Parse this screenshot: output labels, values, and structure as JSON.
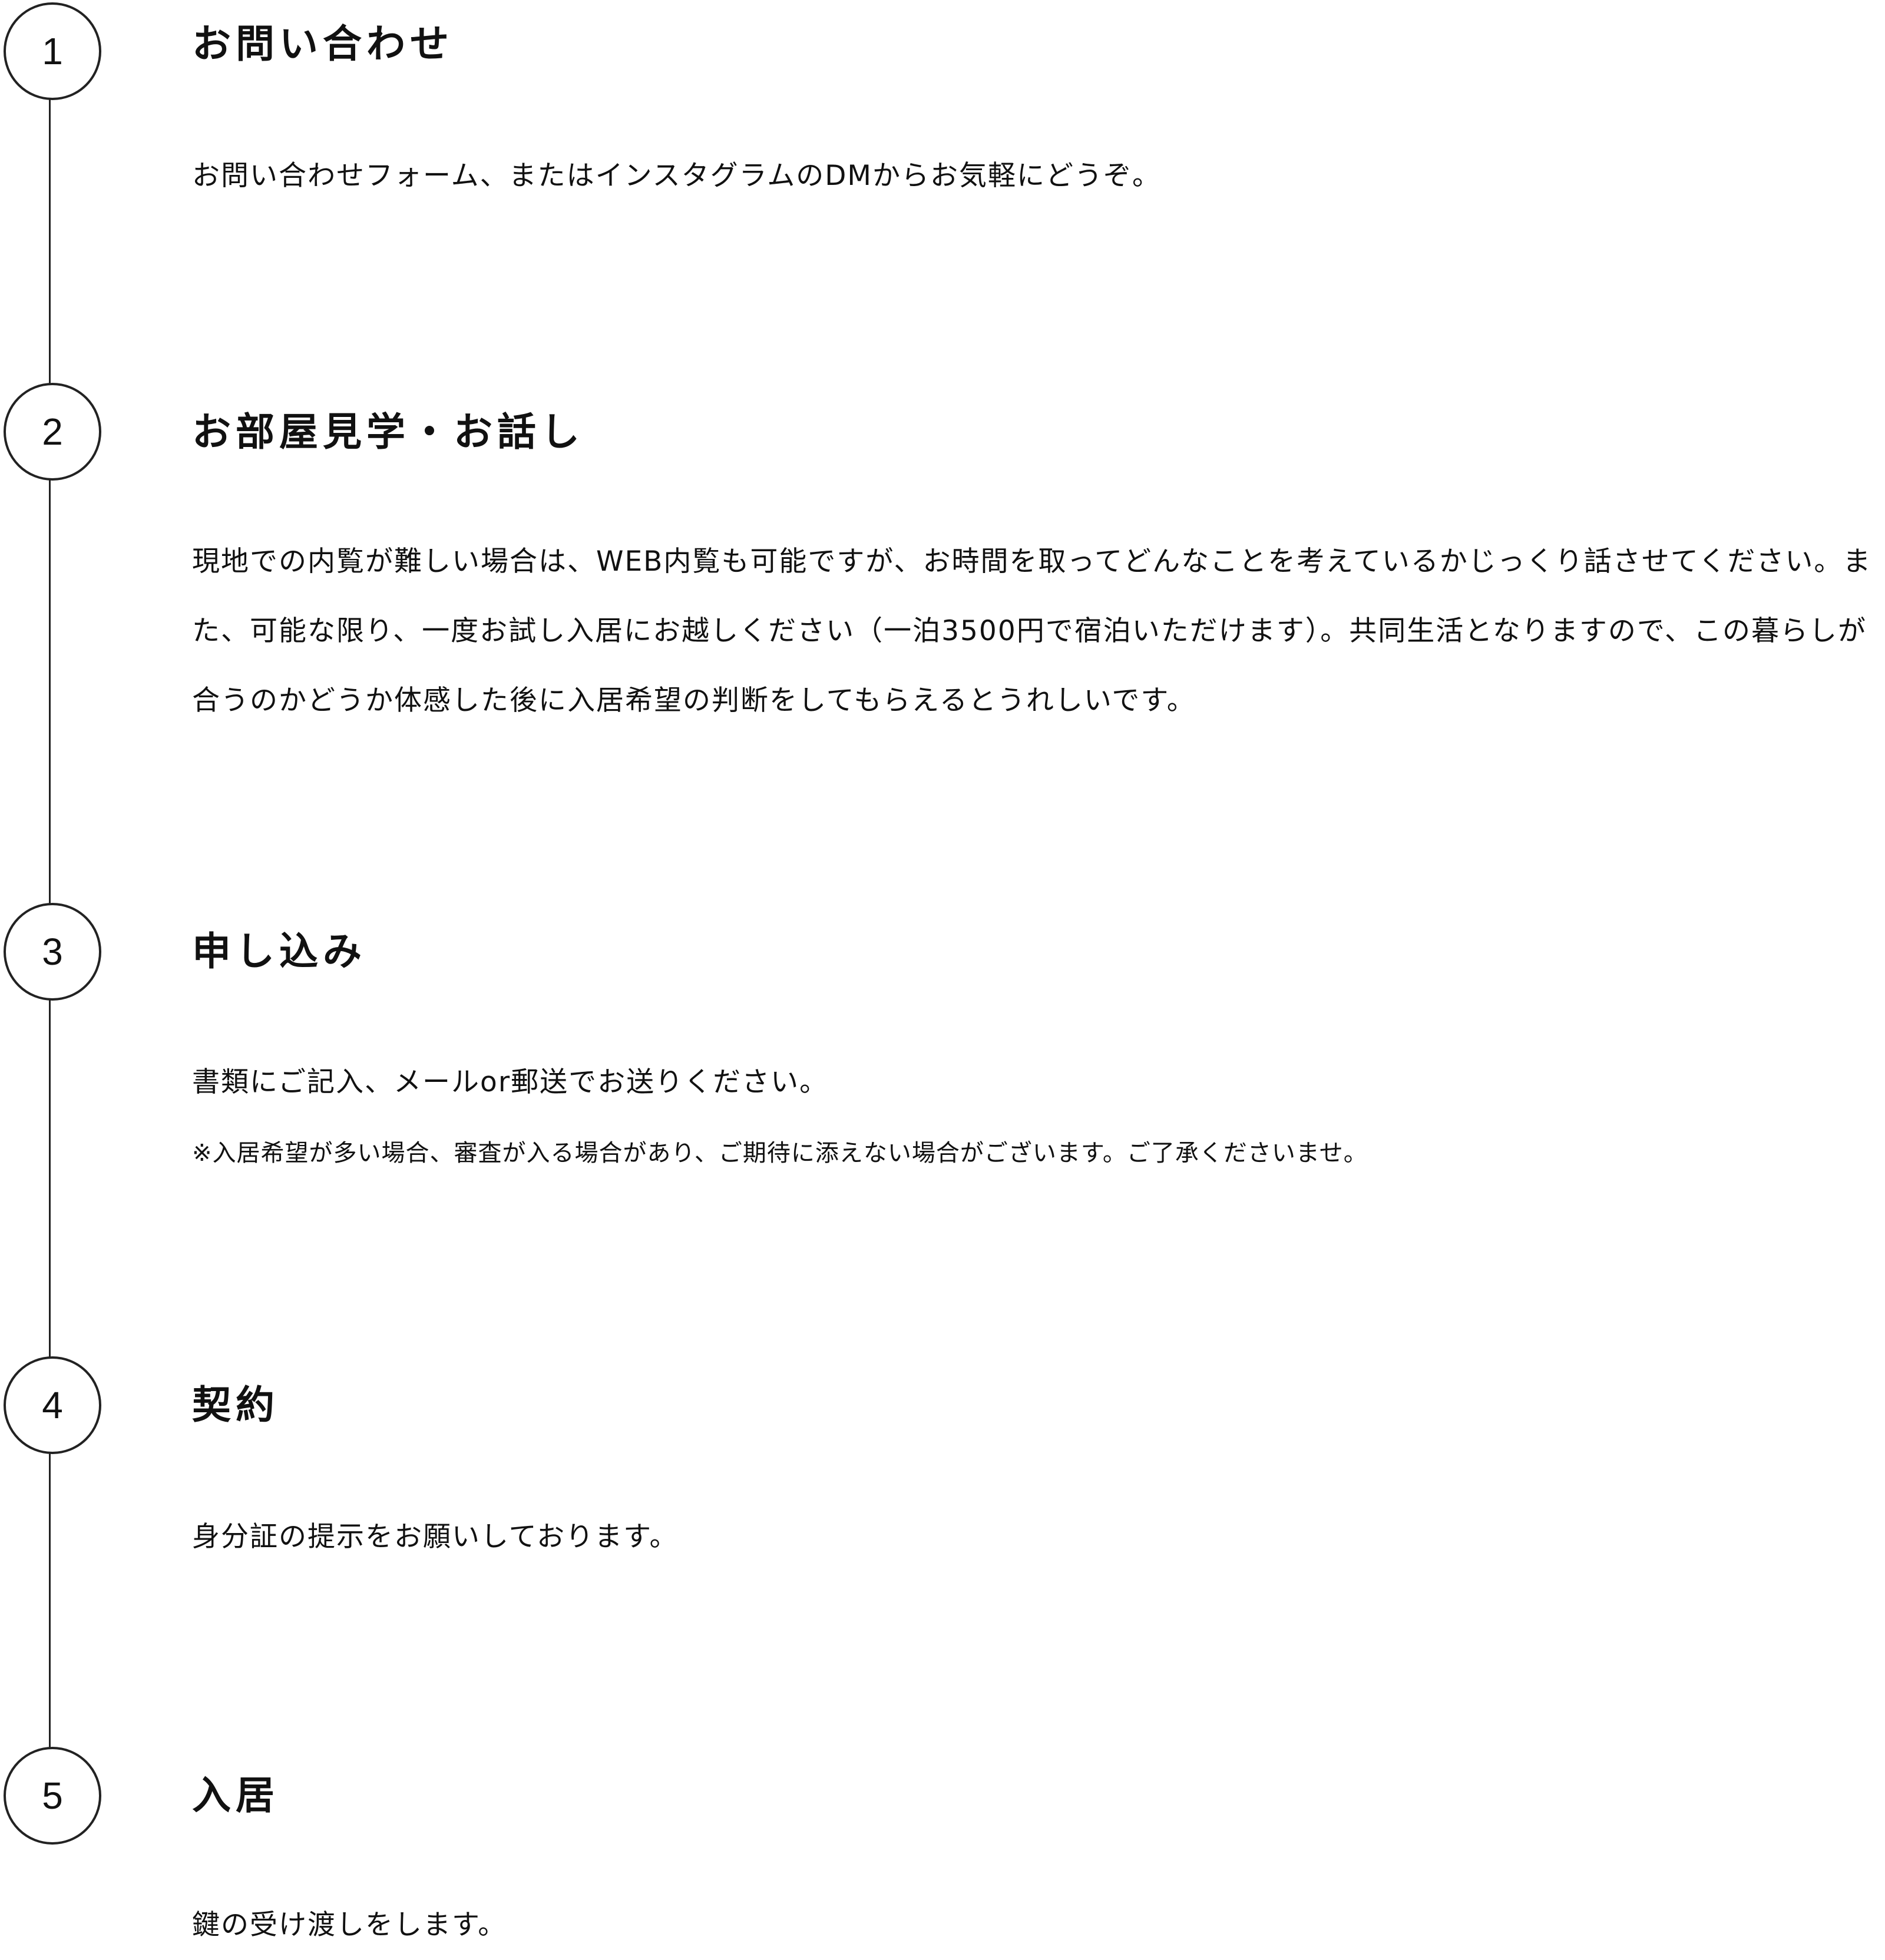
{
  "steps": [
    {
      "number": "1",
      "title": "お問い合わせ",
      "body": "お問い合わせフォーム、またはインスタグラムのDMからお気軽にどうぞ。"
    },
    {
      "number": "2",
      "title": "お部屋見学・お話し",
      "body": "現地での内覧が難しい場合は、WEB内覧も可能ですが、お時間を取ってどんなことを考えているかじっくり話させてください。また、可能な限り、一度お試し入居にお越しください（一泊3500円で宿泊いただけます）。共同生活となりますので、この暮らしが合うのかどうか体感した後に入居希望の判断をしてもらえるとうれしいです。"
    },
    {
      "number": "3",
      "title": "申し込み",
      "body": "書類にご記入、メールor郵送でお送りください。",
      "note": "※入居希望が多い場合、審査が入る場合があり、ご期待に添えない場合がございます。ご了承くださいませ。"
    },
    {
      "number": "4",
      "title": "契約",
      "body": "身分証の提示をお願いしております。"
    },
    {
      "number": "5",
      "title": "入居",
      "body": "鍵の受け渡しをします。"
    }
  ]
}
